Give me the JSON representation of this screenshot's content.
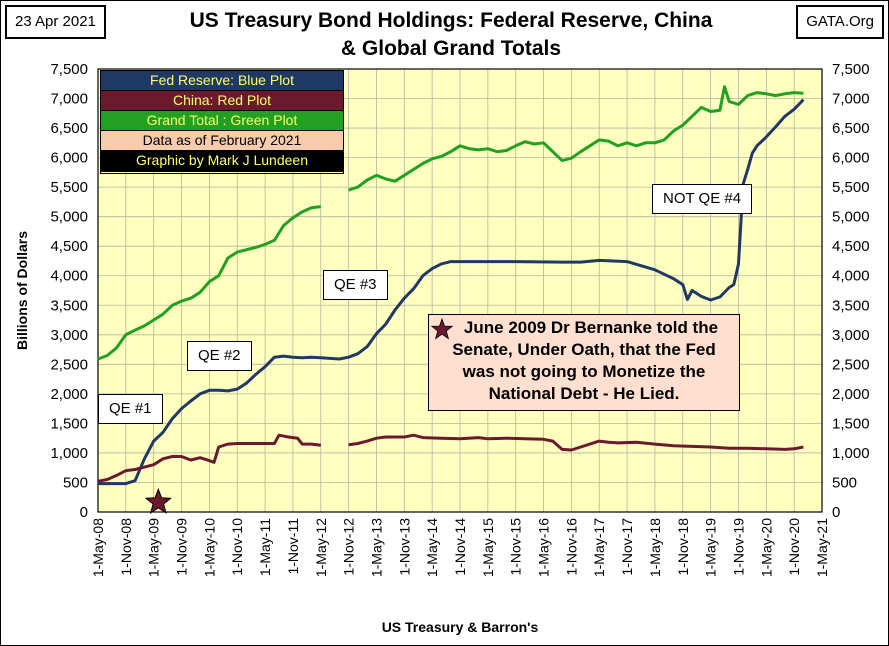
{
  "corner": {
    "date": "23 Apr 2021",
    "source": "GATA.Org"
  },
  "title_line1": "US Treasury Bond Holdings: Federal Reserve, China",
  "title_line2": "& Global Grand Totals",
  "legend": {
    "fed": "Fed Reserve: Blue Plot",
    "china": "China: Red Plot",
    "total": "Grand Total : Green Plot",
    "data": "Data as of February 2021",
    "credit": "Graphic by Mark J Lundeen"
  },
  "annotations": {
    "qe1": "QE #1",
    "qe2": "QE #2",
    "qe3": "QE #3",
    "qe4": "NOT QE #4",
    "quote_lines": [
      "June 2009 Dr Bernanke told the",
      "Senate, Under Oath, that the Fed",
      "was not going to Monetize the",
      "National Debt - He Lied."
    ]
  },
  "colors": {
    "plot_bg": "#ffffc0",
    "fed": "#1f3864",
    "china": "#6b1a2e",
    "total": "#22a022",
    "star": "#6b1a2e",
    "legend_fed_bg": "#1f3864",
    "legend_china_bg": "#6b1a2e",
    "legend_total_bg": "#22a022",
    "legend_data_bg": "#f8cbad",
    "legend_credit_bg": "#000000"
  },
  "chart_data": {
    "type": "line",
    "title": "US Treasury Bond Holdings: Federal Reserve, China & Global Grand Totals",
    "xlabel": "US Treasury & Barron's",
    "ylabel": "Billions of Dollars",
    "ylim": [
      0,
      7500
    ],
    "yticks": [
      0,
      500,
      1000,
      1500,
      2000,
      2500,
      3000,
      3500,
      4000,
      4500,
      5000,
      5500,
      6000,
      6500,
      7000,
      7500
    ],
    "ytick_labels": [
      "0",
      "500",
      "1,000",
      "1,500",
      "2,000",
      "2,500",
      "3,000",
      "3,500",
      "4,000",
      "4,500",
      "5,000",
      "5,500",
      "6,000",
      "6,500",
      "7,000",
      "7,500"
    ],
    "x_unit": "months since May 2008",
    "xlim": [
      0,
      156
    ],
    "xticks": [
      0,
      6,
      12,
      18,
      24,
      30,
      36,
      42,
      48,
      54,
      60,
      66,
      72,
      78,
      84,
      90,
      96,
      102,
      108,
      114,
      120,
      126,
      132,
      138,
      144,
      150,
      156
    ],
    "x_labels": [
      "1-May-08",
      "1-Nov-08",
      "1-May-09",
      "1-Nov-09",
      "1-May-10",
      "1-Nov-10",
      "1-May-11",
      "1-Nov-11",
      "1-May-12",
      "1-Nov-12",
      "1-May-13",
      "1-Nov-13",
      "1-May-14",
      "1-Nov-14",
      "1-May-15",
      "1-Nov-15",
      "1-May-16",
      "1-Nov-16",
      "1-May-17",
      "1-Nov-17",
      "1-May-18",
      "1-Nov-18",
      "1-May-19",
      "1-Nov-19",
      "1-May-20",
      "1-Nov-20",
      "1-May-21"
    ],
    "grid": true,
    "series": [
      {
        "name": "Fed Reserve",
        "color_key": "fed",
        "segments": [
          [
            [
              0,
              480
            ],
            [
              3,
              480
            ],
            [
              6,
              480
            ],
            [
              8,
              530
            ],
            [
              10,
              900
            ],
            [
              12,
              1200
            ],
            [
              14,
              1350
            ],
            [
              16,
              1580
            ],
            [
              18,
              1750
            ],
            [
              20,
              1880
            ],
            [
              22,
              2000
            ],
            [
              24,
              2060
            ],
            [
              26,
              2060
            ],
            [
              28,
              2050
            ],
            [
              30,
              2080
            ],
            [
              32,
              2180
            ],
            [
              34,
              2330
            ],
            [
              36,
              2460
            ],
            [
              38,
              2620
            ],
            [
              40,
              2640
            ],
            [
              42,
              2620
            ],
            [
              44,
              2610
            ],
            [
              46,
              2620
            ],
            [
              48,
              2610
            ],
            [
              50,
              2600
            ],
            [
              52,
              2590
            ],
            [
              54,
              2620
            ],
            [
              56,
              2680
            ],
            [
              58,
              2800
            ],
            [
              60,
              3020
            ],
            [
              62,
              3180
            ],
            [
              64,
              3420
            ],
            [
              66,
              3620
            ],
            [
              68,
              3780
            ],
            [
              70,
              4000
            ],
            [
              72,
              4120
            ],
            [
              74,
              4200
            ],
            [
              76,
              4240
            ],
            [
              78,
              4240
            ],
            [
              82,
              4240
            ],
            [
              90,
              4240
            ],
            [
              100,
              4230
            ],
            [
              104,
              4230
            ],
            [
              108,
              4260
            ],
            [
              114,
              4240
            ],
            [
              120,
              4100
            ],
            [
              124,
              3950
            ],
            [
              126,
              3850
            ],
            [
              127,
              3600
            ],
            [
              128,
              3750
            ],
            [
              130,
              3650
            ],
            [
              132,
              3590
            ],
            [
              134,
              3640
            ],
            [
              136,
              3800
            ],
            [
              137,
              3850
            ],
            [
              138,
              4200
            ],
            [
              139,
              5550
            ],
            [
              140,
              5800
            ],
            [
              141,
              6080
            ],
            [
              142,
              6200
            ],
            [
              144,
              6350
            ],
            [
              146,
              6520
            ],
            [
              148,
              6700
            ],
            [
              150,
              6820
            ],
            [
              152,
              6980
            ]
          ]
        ]
      },
      {
        "name": "China",
        "color_key": "china",
        "segments": [
          [
            [
              0,
              520
            ],
            [
              2,
              550
            ],
            [
              4,
              620
            ],
            [
              6,
              700
            ],
            [
              8,
              720
            ],
            [
              10,
              760
            ],
            [
              12,
              800
            ],
            [
              14,
              900
            ],
            [
              16,
              940
            ],
            [
              18,
              940
            ],
            [
              20,
              880
            ],
            [
              22,
              920
            ],
            [
              24,
              870
            ],
            [
              25,
              840
            ],
            [
              26,
              1100
            ],
            [
              28,
              1150
            ],
            [
              30,
              1160
            ],
            [
              34,
              1160
            ],
            [
              38,
              1160
            ],
            [
              39,
              1300
            ],
            [
              41,
              1270
            ],
            [
              43,
              1250
            ],
            [
              44,
              1150
            ],
            [
              46,
              1150
            ],
            [
              48,
              1130
            ]
          ],
          [
            [
              54,
              1140
            ],
            [
              56,
              1160
            ],
            [
              58,
              1200
            ],
            [
              60,
              1250
            ],
            [
              62,
              1270
            ],
            [
              66,
              1270
            ],
            [
              68,
              1300
            ],
            [
              70,
              1260
            ],
            [
              74,
              1250
            ],
            [
              78,
              1240
            ],
            [
              82,
              1260
            ],
            [
              84,
              1240
            ],
            [
              88,
              1250
            ],
            [
              92,
              1240
            ],
            [
              96,
              1230
            ],
            [
              98,
              1200
            ],
            [
              100,
              1060
            ],
            [
              102,
              1050
            ],
            [
              104,
              1100
            ],
            [
              106,
              1150
            ],
            [
              108,
              1200
            ],
            [
              110,
              1180
            ],
            [
              112,
              1170
            ],
            [
              116,
              1180
            ],
            [
              120,
              1150
            ],
            [
              124,
              1120
            ],
            [
              128,
              1110
            ],
            [
              132,
              1100
            ],
            [
              136,
              1080
            ],
            [
              140,
              1080
            ],
            [
              144,
              1070
            ],
            [
              148,
              1060
            ],
            [
              150,
              1070
            ],
            [
              152,
              1100
            ]
          ]
        ]
      },
      {
        "name": "Grand Total",
        "color_key": "total",
        "segments": [
          [
            [
              0,
              2590
            ],
            [
              2,
              2650
            ],
            [
              4,
              2780
            ],
            [
              6,
              3000
            ],
            [
              8,
              3080
            ],
            [
              10,
              3150
            ],
            [
              12,
              3250
            ],
            [
              14,
              3350
            ],
            [
              16,
              3500
            ],
            [
              18,
              3570
            ],
            [
              20,
              3620
            ],
            [
              22,
              3720
            ],
            [
              24,
              3900
            ],
            [
              26,
              4000
            ],
            [
              28,
              4300
            ],
            [
              30,
              4400
            ],
            [
              34,
              4480
            ],
            [
              36,
              4530
            ],
            [
              38,
              4600
            ],
            [
              40,
              4850
            ],
            [
              42,
              4980
            ],
            [
              44,
              5080
            ],
            [
              46,
              5150
            ],
            [
              48,
              5170
            ]
          ],
          [
            [
              54,
              5450
            ],
            [
              56,
              5500
            ],
            [
              58,
              5620
            ],
            [
              60,
              5700
            ],
            [
              62,
              5640
            ],
            [
              64,
              5600
            ],
            [
              66,
              5700
            ],
            [
              68,
              5800
            ],
            [
              70,
              5900
            ],
            [
              72,
              5980
            ],
            [
              74,
              6020
            ],
            [
              76,
              6100
            ],
            [
              78,
              6200
            ],
            [
              80,
              6150
            ],
            [
              82,
              6130
            ],
            [
              84,
              6150
            ],
            [
              86,
              6100
            ],
            [
              88,
              6120
            ],
            [
              90,
              6200
            ],
            [
              92,
              6270
            ],
            [
              94,
              6230
            ],
            [
              96,
              6250
            ],
            [
              98,
              6100
            ],
            [
              100,
              5950
            ],
            [
              102,
              5990
            ],
            [
              104,
              6100
            ],
            [
              106,
              6200
            ],
            [
              108,
              6300
            ],
            [
              110,
              6280
            ],
            [
              112,
              6200
            ],
            [
              114,
              6250
            ],
            [
              116,
              6200
            ],
            [
              118,
              6250
            ],
            [
              120,
              6250
            ],
            [
              122,
              6300
            ],
            [
              124,
              6450
            ],
            [
              126,
              6550
            ],
            [
              128,
              6700
            ],
            [
              130,
              6850
            ],
            [
              132,
              6780
            ],
            [
              134,
              6800
            ],
            [
              135,
              7200
            ],
            [
              136,
              6950
            ],
            [
              138,
              6900
            ],
            [
              140,
              7050
            ],
            [
              142,
              7100
            ],
            [
              144,
              7080
            ],
            [
              146,
              7050
            ],
            [
              148,
              7080
            ],
            [
              150,
              7100
            ],
            [
              152,
              7090
            ]
          ]
        ]
      }
    ],
    "markers": [
      {
        "label": "Star (June 2009)",
        "x": 13,
        "y": 300
      }
    ]
  }
}
